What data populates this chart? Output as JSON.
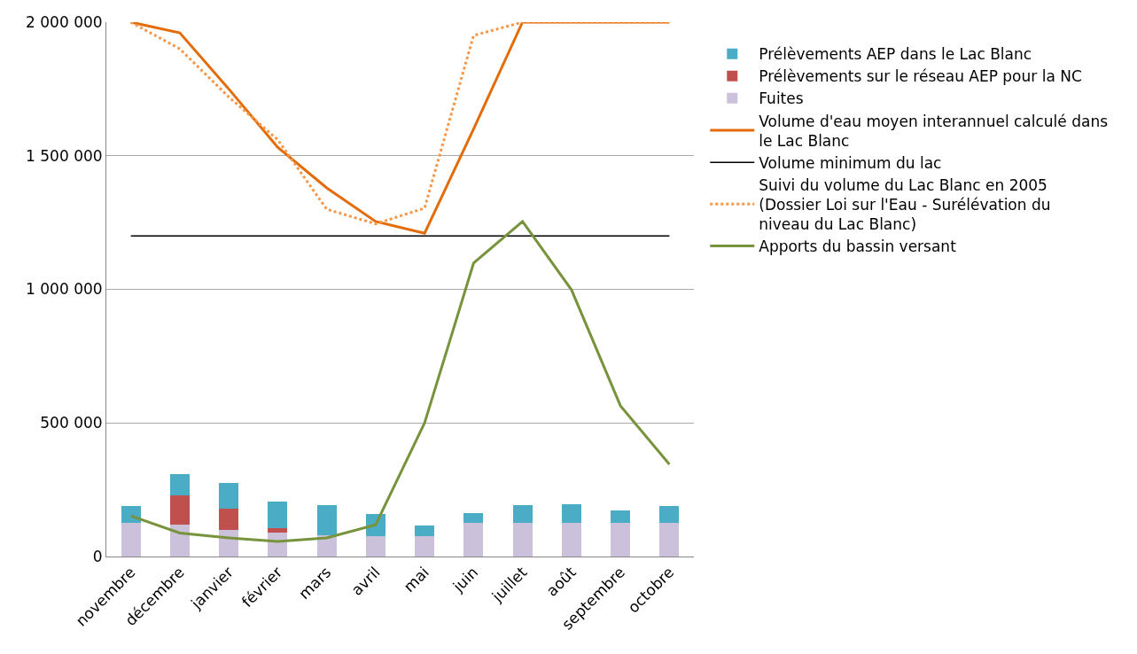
{
  "chart_data": {
    "type": "bar",
    "stacked": true,
    "categories": [
      "novembre",
      "décembre",
      "janvier",
      "février",
      "mars",
      "avril",
      "mai",
      "juin",
      "juillet",
      "août",
      "septembre",
      "octobre"
    ],
    "series": [
      {
        "name": "Fuites",
        "color": "#ccc1da",
        "values": [
          125000,
          120000,
          100000,
          90000,
          80000,
          75000,
          75000,
          125000,
          125000,
          125000,
          125000,
          125000
        ]
      },
      {
        "name": "Prélèvements sur le réseau AEP pour la NC",
        "color": "#c0504d",
        "values": [
          null,
          110000,
          80000,
          15000,
          null,
          null,
          null,
          null,
          null,
          null,
          null,
          null
        ]
      },
      {
        "name": "Prélèvements AEP dans le Lac Blanc",
        "color": "#4bacc6",
        "values": [
          65000,
          80000,
          95000,
          100000,
          113000,
          84000,
          41000,
          37000,
          68000,
          71000,
          47000,
          64000
        ]
      },
      {
        "name": "Volume d'eau moyen interannuel calculé dans le Lac Blanc",
        "type": "line",
        "color": "#e36c09",
        "line_style": "solid",
        "values": [
          2000000,
          1960000,
          1750000,
          1532000,
          1380000,
          1254000,
          1210000,
          1600000,
          2000000,
          2000000,
          2000000,
          2000000
        ]
      },
      {
        "name": "Volume minimum du lac",
        "type": "line",
        "color": "#000000",
        "line_style": "solid",
        "values": [
          1200000,
          1200000,
          1200000,
          1200000,
          1200000,
          1200000,
          1200000,
          1200000,
          1200000,
          1200000,
          1200000,
          1200000
        ]
      },
      {
        "name": "Suivi du volume du Lac Blanc en 2005 (Dossier Loi sur l'Eau - Surélévation du niveau du Lac Blanc)",
        "type": "line",
        "color": "#f79646",
        "line_style": "dotted",
        "values": [
          2000000,
          1900000,
          1720000,
          1560000,
          1300000,
          1245000,
          1304000,
          1950000,
          2000000,
          2000000,
          2000000,
          2000000
        ]
      },
      {
        "name": "Apports du bassin versant",
        "type": "line",
        "color": "#77933c",
        "line_style": "solid",
        "values": [
          152000,
          88000,
          70000,
          56000,
          70000,
          119000,
          500000,
          1098000,
          1254000,
          998000,
          564000,
          345000
        ]
      }
    ],
    "ylim": [
      0,
      2000000
    ],
    "yticks": [
      {
        "value": 0,
        "label": "0"
      },
      {
        "value": 500000,
        "label": "500 000"
      },
      {
        "value": 1000000,
        "label": "1 000 000"
      },
      {
        "value": 1500000,
        "label": "1 500 000"
      },
      {
        "value": 2000000,
        "label": "2 000 000"
      }
    ],
    "grid": "y",
    "legend": "right",
    "marker": "none"
  }
}
